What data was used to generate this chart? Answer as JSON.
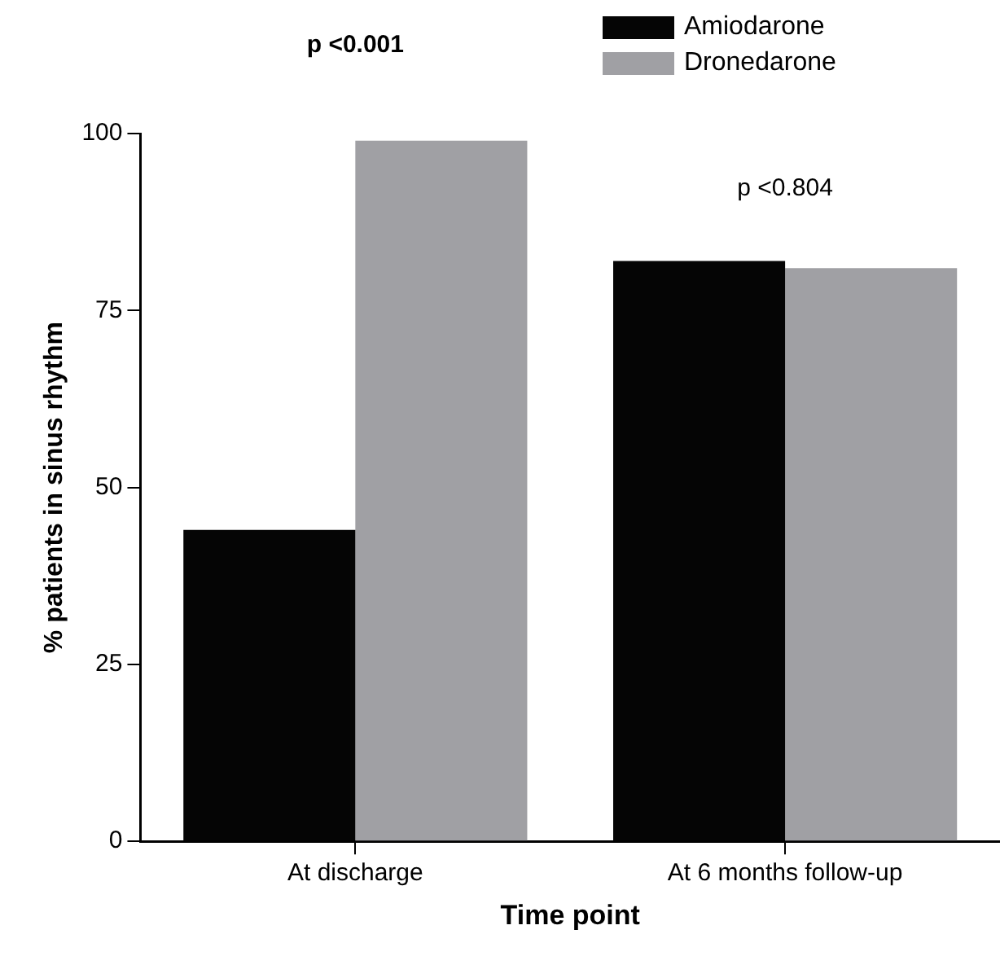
{
  "chart_data": {
    "type": "bar",
    "xlabel": "Time point",
    "ylabel": "% patients in sinus rhythm",
    "categories": [
      "At discharge",
      "At 6 months follow-up"
    ],
    "series": [
      {
        "name": "Amiodarone",
        "color": "#050505",
        "values": [
          44,
          82
        ]
      },
      {
        "name": "Dronedarone",
        "color": "#a0a0a4",
        "values": [
          99,
          81
        ]
      }
    ],
    "ylim": [
      0,
      100
    ],
    "yticks": [
      0,
      25,
      50,
      75,
      100
    ],
    "grid": false,
    "legend": "top right",
    "annotations": [
      "p <0.001",
      "p <0.804"
    ]
  }
}
